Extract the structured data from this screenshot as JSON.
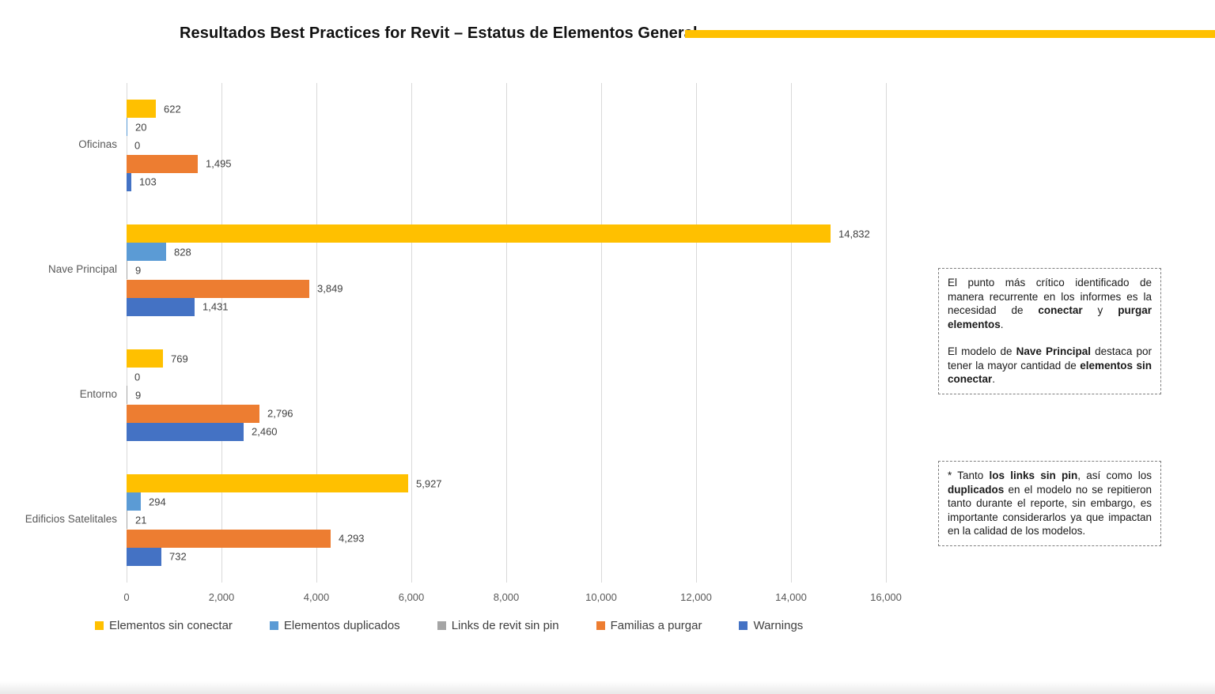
{
  "title": "Resultados Best Practices for Revit – Estatus de Elementos General",
  "colors": {
    "accent_bar": "#FFC000",
    "gridline": "#D9D9D9",
    "axis_text": "#595959",
    "value_text": "#404040",
    "series_yellow": "#FFC000",
    "series_lightblue": "#5B9BD5",
    "series_gray": "#A5A5A5",
    "series_orange": "#ED7D31",
    "series_blue": "#4472C4"
  },
  "chart_data": {
    "type": "bar",
    "orientation": "horizontal",
    "title": "Resultados Best Practices for Revit – Estatus de Elementos General",
    "categories": [
      "Oficinas",
      "Nave Principal",
      "Entorno",
      "Edificios Satelitales"
    ],
    "series": [
      {
        "name": "Elementos sin conectar",
        "color": "#FFC000",
        "values": [
          622,
          14832,
          769,
          5927
        ]
      },
      {
        "name": "Elementos duplicados",
        "color": "#5B9BD5",
        "values": [
          20,
          828,
          0,
          294
        ]
      },
      {
        "name": "Links de revit sin pin",
        "color": "#A5A5A5",
        "values": [
          0,
          9,
          9,
          21
        ]
      },
      {
        "name": "Familias a purgar",
        "color": "#ED7D31",
        "values": [
          1495,
          3849,
          2796,
          4293
        ]
      },
      {
        "name": "Warnings",
        "color": "#4472C4",
        "values": [
          103,
          1431,
          2460,
          732
        ]
      }
    ],
    "xlim": [
      0,
      16000
    ],
    "x_ticks": [
      {
        "value": 0,
        "label": "0"
      },
      {
        "value": 2000,
        "label": "2,000"
      },
      {
        "value": 4000,
        "label": "4,000"
      },
      {
        "value": 6000,
        "label": "6,000"
      },
      {
        "value": 8000,
        "label": "8,000"
      },
      {
        "value": 10000,
        "label": "10,000"
      },
      {
        "value": 12000,
        "label": "12,000"
      },
      {
        "value": 14000,
        "label": "14,000"
      },
      {
        "value": 16000,
        "label": "16,000"
      }
    ],
    "grid": true,
    "legend_position": "bottom",
    "value_labels": true
  },
  "annotations": [
    {
      "paragraphs": [
        [
          {
            "t": "El punto más crítico identificado de manera recurrente en los informes es la necesidad de "
          },
          {
            "t": "conectar",
            "b": 1
          },
          {
            "t": " y "
          },
          {
            "t": "purgar elementos",
            "b": 1
          },
          {
            "t": "."
          }
        ],
        [
          {
            "t": "El modelo de "
          },
          {
            "t": "Nave Principal",
            "b": 1
          },
          {
            "t": " destaca por tener la mayor cantidad de "
          },
          {
            "t": "elementos sin conectar",
            "b": 1
          },
          {
            "t": "."
          }
        ]
      ]
    },
    {
      "paragraphs": [
        [
          {
            "t": "* Tanto "
          },
          {
            "t": "los links sin pin",
            "b": 1
          },
          {
            "t": ", así como los "
          },
          {
            "t": "duplicados",
            "b": 1
          },
          {
            "t": " en el modelo no se repitieron tanto durante el reporte, sin embargo, es importante considerarlos ya que impactan en la calidad de los modelos."
          }
        ]
      ]
    }
  ]
}
